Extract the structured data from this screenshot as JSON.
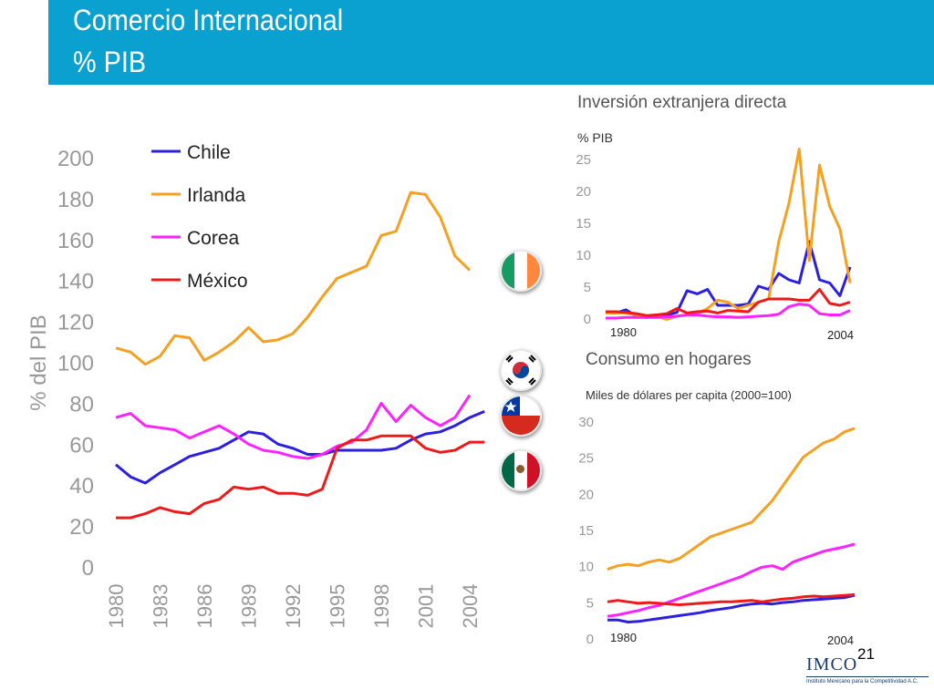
{
  "slide": {
    "title_line1": "Comercio Internacional",
    "title_line2": "% PIB",
    "page_number": "21",
    "logo_text": "Instituto Mexicano para la Competitividad A.C."
  },
  "colors": {
    "header": "#0aa0cf",
    "Chile": "#2b1fe0",
    "Irlanda": "#f5a020",
    "Corea": "#ff22ff",
    "Mexico": "#ee1a1a"
  },
  "flags": [
    "ireland-flag-icon",
    "south-korea-flag-icon",
    "chile-flag-icon",
    "mexico-flag-icon"
  ],
  "chart_data": [
    {
      "type": "line",
      "title": "",
      "ylabel": "% del PIB",
      "xlabel": "",
      "ylim": [
        0,
        200
      ],
      "yticks": [
        "0",
        "20",
        "40",
        "60",
        "80",
        "100",
        "120",
        "140",
        "160",
        "180",
        "200"
      ],
      "xticks": [
        "1980",
        "1983",
        "1986",
        "1989",
        "1992",
        "1995",
        "1998",
        "2001",
        "2004"
      ],
      "legend_position": "top-left",
      "grid": false,
      "x": [
        1980,
        1981,
        1982,
        1983,
        1984,
        1985,
        1986,
        1987,
        1988,
        1989,
        1990,
        1991,
        1992,
        1993,
        1994,
        1995,
        1996,
        1997,
        1998,
        1999,
        2000,
        2001,
        2002,
        2003,
        2004,
        2005
      ],
      "series": [
        {
          "name": "Chile",
          "values": [
            50,
            44,
            41,
            46,
            50,
            54,
            56,
            58,
            62,
            66,
            65,
            60,
            58,
            55,
            55,
            57,
            57,
            57,
            57,
            58,
            62,
            65,
            66,
            69,
            73,
            76
          ]
        },
        {
          "name": "Irlanda",
          "values": [
            107,
            105,
            99,
            103,
            113,
            112,
            101,
            105,
            110,
            117,
            110,
            111,
            114,
            122,
            132,
            141,
            144,
            147,
            162,
            164,
            183,
            182,
            171,
            152,
            145,
            null
          ]
        },
        {
          "name": "Corea",
          "values": [
            73,
            75,
            69,
            68,
            67,
            63,
            66,
            69,
            65,
            60,
            57,
            56,
            54,
            53,
            55,
            59,
            61,
            67,
            80,
            71,
            79,
            73,
            69,
            73,
            84,
            null
          ]
        },
        {
          "name": "México",
          "values": [
            24,
            24,
            26,
            29,
            27,
            26,
            31,
            33,
            39,
            38,
            39,
            36,
            36,
            35,
            38,
            58,
            62,
            62,
            64,
            64,
            64,
            58,
            56,
            57,
            61,
            61
          ]
        }
      ]
    },
    {
      "type": "line",
      "title": "Inversión extranjera directa",
      "ylabel": "%  PIB",
      "xlabel": "",
      "ylim": [
        0,
        25
      ],
      "yticks": [
        "0",
        "5",
        "10",
        "15",
        "20",
        "25"
      ],
      "xticks": [
        "1980",
        "2004"
      ],
      "grid": false,
      "x": [
        1980,
        1981,
        1982,
        1983,
        1984,
        1985,
        1986,
        1987,
        1988,
        1989,
        1990,
        1991,
        1992,
        1993,
        1994,
        1995,
        1996,
        1997,
        1998,
        1999,
        2000,
        2001,
        2002,
        2003,
        2004
      ],
      "series": [
        {
          "values": [
            0.9,
            0.8,
            1.3,
            0.3,
            0.1,
            0.5,
            0.5,
            0.9,
            4.3,
            3.8,
            4.5,
            2.0,
            2.0,
            2.0,
            2.2,
            5.0,
            4.5,
            7.0,
            6.0,
            5.5,
            12.0,
            6.0,
            5.5,
            3.5,
            8.0
          ]
        },
        {
          "values": [
            0.8,
            0.8,
            0.8,
            0.5,
            0.3,
            0.3,
            -0.2,
            0.3,
            0.5,
            0.7,
            1.5,
            2.8,
            2.5,
            1.5,
            2.0,
            2.5,
            3.0,
            12.0,
            18.0,
            26.5,
            9.0,
            24.0,
            17.5,
            14.0,
            5.5
          ]
        },
        {
          "values": [
            0.0,
            0.0,
            0.1,
            0.1,
            0.1,
            0.1,
            0.2,
            0.3,
            0.5,
            0.5,
            0.3,
            0.2,
            0.2,
            0.1,
            0.2,
            0.3,
            0.4,
            0.6,
            1.8,
            2.2,
            2.0,
            0.7,
            0.5,
            0.5,
            1.2
          ]
        },
        {
          "values": [
            1.0,
            1.0,
            0.9,
            0.7,
            0.4,
            0.5,
            0.7,
            1.5,
            0.8,
            1.0,
            1.1,
            0.8,
            1.2,
            1.1,
            1.0,
            2.5,
            3.0,
            3.0,
            3.0,
            2.8,
            2.8,
            4.5,
            2.3,
            2.0,
            2.5
          ]
        }
      ]
    },
    {
      "type": "line",
      "title": "Consumo en hogares",
      "subtitle": "Miles de dólares per capita (2000=100)",
      "xlabel": "",
      "ylim": [
        0,
        30
      ],
      "yticks": [
        "0",
        "5",
        "10",
        "15",
        "20",
        "25",
        "30"
      ],
      "xticks": [
        "1980",
        "2004"
      ],
      "grid": false,
      "x": [
        1980,
        1981,
        1982,
        1983,
        1984,
        1985,
        1986,
        1987,
        1988,
        1989,
        1990,
        1991,
        1992,
        1993,
        1994,
        1995,
        1996,
        1997,
        1998,
        1999,
        2000,
        2001,
        2002,
        2003,
        2004
      ],
      "series": [
        {
          "values": [
            2.5,
            2.5,
            2.2,
            2.3,
            2.5,
            2.7,
            2.9,
            3.1,
            3.3,
            3.5,
            3.8,
            4.0,
            4.2,
            4.5,
            4.7,
            4.8,
            4.7,
            4.9,
            5.0,
            5.2,
            5.3,
            5.4,
            5.5,
            5.6,
            5.9
          ]
        },
        {
          "values": [
            9.5,
            10.0,
            10.2,
            10.0,
            10.5,
            10.8,
            10.5,
            11.0,
            12.0,
            13.0,
            14.0,
            14.5,
            15.0,
            15.5,
            16.0,
            17.5,
            19.0,
            21.0,
            23.0,
            25.0,
            26.0,
            27.0,
            27.5,
            28.5,
            29.0
          ]
        },
        {
          "values": [
            3.0,
            3.2,
            3.5,
            3.8,
            4.2,
            4.5,
            5.0,
            5.5,
            6.0,
            6.5,
            7.0,
            7.5,
            8.0,
            8.5,
            9.2,
            9.8,
            10.0,
            9.5,
            10.5,
            11.0,
            11.5,
            12.0,
            12.3,
            12.6,
            13.0
          ]
        },
        {
          "values": [
            5.0,
            5.2,
            5.0,
            4.8,
            4.9,
            4.8,
            4.7,
            4.6,
            4.7,
            4.8,
            4.9,
            5.0,
            5.0,
            5.1,
            5.2,
            5.0,
            5.2,
            5.4,
            5.5,
            5.7,
            5.8,
            5.7,
            5.8,
            5.9,
            6.0
          ]
        }
      ]
    }
  ]
}
